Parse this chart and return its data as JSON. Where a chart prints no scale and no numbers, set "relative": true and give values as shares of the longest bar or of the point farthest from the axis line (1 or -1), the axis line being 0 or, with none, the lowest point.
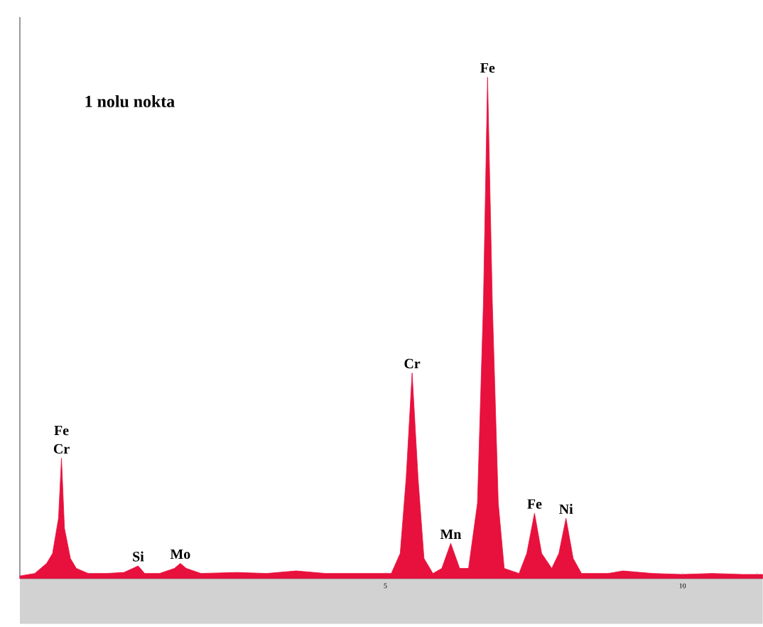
{
  "chart_data": {
    "type": "area",
    "title": "1 nolu nokta",
    "relative": true,
    "color": "#e8103c",
    "x": [
      -1.15,
      -0.9,
      -0.7,
      -0.6,
      -0.5,
      -0.45,
      -0.4,
      -0.3,
      -0.2,
      0,
      0.3,
      0.6,
      0.75,
      0.84,
      0.95,
      1.2,
      1.45,
      1.55,
      1.65,
      1.9,
      2.5,
      3.0,
      3.5,
      4.0,
      4.6,
      5.1,
      5.25,
      5.35,
      5.45,
      5.55,
      5.65,
      5.8,
      5.95,
      6.1,
      6.25,
      6.4,
      6.55,
      6.65,
      6.72,
      6.8,
      6.9,
      7.0,
      7.25,
      7.38,
      7.51,
      7.63,
      7.8,
      7.92,
      8.04,
      8.16,
      8.3,
      8.75,
      9.0,
      9.5,
      10,
      10.5,
      11,
      11.35
    ],
    "values": [
      0.005,
      0.01,
      0.03,
      0.05,
      0.12,
      0.24,
      0.1,
      0.04,
      0.02,
      0.01,
      0.01,
      0.012,
      0.02,
      0.025,
      0.01,
      0.01,
      0.02,
      0.03,
      0.02,
      0.01,
      0.012,
      0.01,
      0.015,
      0.01,
      0.01,
      0.01,
      0.05,
      0.2,
      0.41,
      0.2,
      0.04,
      0.01,
      0.02,
      0.07,
      0.02,
      0.02,
      0.15,
      0.55,
      1,
      0.55,
      0.15,
      0.02,
      0.01,
      0.05,
      0.13,
      0.05,
      0.02,
      0.05,
      0.12,
      0.04,
      0.01,
      0.01,
      0.015,
      0.01,
      0.008,
      0.01,
      0.008,
      0.008
    ],
    "xlim": [
      -1.15,
      11.35
    ],
    "xticks": [
      {
        "value": 0,
        "label": null
      },
      {
        "value": 1.25,
        "label": null
      },
      {
        "value": 2.5,
        "label": null
      },
      {
        "value": 3.75,
        "label": null
      },
      5,
      {
        "value": 6.25,
        "label": null
      },
      {
        "value": 7.5,
        "label": null
      },
      {
        "value": 8.75,
        "label": null
      },
      10,
      {
        "value": 11.25,
        "label": null
      }
    ],
    "annotations": [
      {
        "text": "Cr",
        "x": -0.45,
        "y": 0.24
      },
      {
        "text": "Fe",
        "x": -0.45,
        "y": 0.24
      },
      {
        "text": "Si",
        "x": 0.84,
        "y": 0.025
      },
      {
        "text": "Mo",
        "x": 1.55,
        "y": 0.03
      },
      {
        "text": "Cr",
        "x": 5.45,
        "y": 0.41
      },
      {
        "text": "Mn",
        "x": 6.1,
        "y": 0.07
      },
      {
        "text": "Fe",
        "x": 6.72,
        "y": 1
      },
      {
        "text": "Fe",
        "x": 7.51,
        "y": 0.13
      },
      {
        "text": "Ni",
        "x": 8.04,
        "y": 0.12
      }
    ]
  }
}
